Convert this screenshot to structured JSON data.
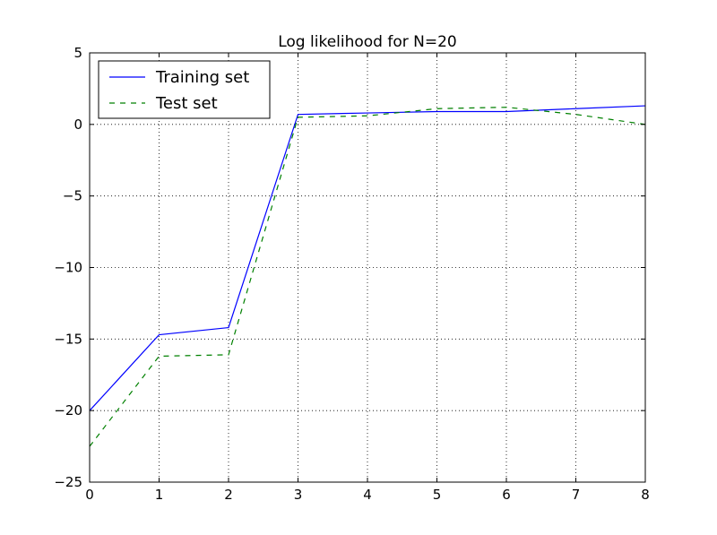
{
  "chart_data": {
    "type": "line",
    "title": "Log likelihood for N=20",
    "xlabel": "",
    "ylabel": "",
    "xlim": [
      0,
      8
    ],
    "ylim": [
      -25,
      5
    ],
    "grid": true,
    "legend_position": "top-left",
    "x_ticks": [
      "0",
      "1",
      "2",
      "3",
      "4",
      "5",
      "6",
      "7",
      "8"
    ],
    "y_ticks": [
      "5",
      "0",
      "−5",
      "−10",
      "−15",
      "−20",
      "−25"
    ],
    "series": [
      {
        "name": "Training set",
        "color": "#0000ff",
        "style": "solid",
        "x": [
          0,
          1,
          2,
          3,
          4,
          5,
          6,
          7,
          8
        ],
        "values": [
          -20.0,
          -14.7,
          -14.2,
          0.7,
          0.8,
          0.9,
          0.9,
          1.1,
          1.3
        ]
      },
      {
        "name": "Test set",
        "color": "#008000",
        "style": "dashed",
        "x": [
          0,
          1,
          2,
          3,
          4,
          5,
          6,
          7,
          8
        ],
        "values": [
          -22.5,
          -16.2,
          -16.1,
          0.5,
          0.6,
          1.1,
          1.2,
          0.7,
          0.0
        ]
      }
    ]
  }
}
